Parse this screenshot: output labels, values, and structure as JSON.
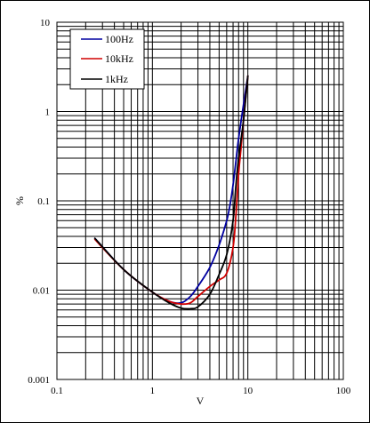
{
  "chart_data": {
    "type": "line",
    "title": "",
    "xlabel": "V",
    "ylabel": "%",
    "x_scale": "log",
    "y_scale": "log",
    "xlim": [
      0.1,
      100
    ],
    "ylim": [
      0.001,
      10
    ],
    "grid": true,
    "legend_position": "top-left",
    "x_tick_labels": [
      "0.1",
      "1",
      "10",
      "100"
    ],
    "y_tick_labels": [
      "0.001",
      "0.01",
      "0.1",
      "1",
      "10"
    ],
    "series": [
      {
        "name": "100Hz",
        "color": "#0000a0",
        "x": [
          0.25,
          0.5,
          1.0,
          1.5,
          2.0,
          2.5,
          3.0,
          4.0,
          5.0,
          6.0,
          6.5,
          7.0,
          7.5,
          8.0,
          9.0,
          10.0
        ],
        "y": [
          0.038,
          0.017,
          0.0095,
          0.0075,
          0.0072,
          0.0085,
          0.011,
          0.018,
          0.032,
          0.06,
          0.09,
          0.15,
          0.28,
          0.5,
          1.2,
          2.5
        ]
      },
      {
        "name": "10kHz",
        "color": "#d00000",
        "x": [
          0.25,
          0.5,
          1.0,
          1.5,
          2.0,
          2.5,
          3.0,
          4.0,
          5.0,
          6.0,
          7.0,
          7.5,
          8.0,
          8.5,
          9.0,
          10.0
        ],
        "y": [
          0.037,
          0.017,
          0.0095,
          0.0075,
          0.007,
          0.0072,
          0.0085,
          0.011,
          0.013,
          0.0155,
          0.03,
          0.07,
          0.2,
          0.4,
          0.8,
          2.5
        ]
      },
      {
        "name": "1kHz",
        "color": "#000000",
        "x": [
          0.25,
          0.5,
          1.0,
          1.5,
          2.0,
          2.5,
          3.0,
          4.0,
          5.0,
          6.0,
          7.0,
          7.5,
          8.0,
          9.0,
          10.0
        ],
        "y": [
          0.038,
          0.017,
          0.0095,
          0.0072,
          0.0063,
          0.0062,
          0.0065,
          0.009,
          0.015,
          0.025,
          0.06,
          0.15,
          0.3,
          0.8,
          2.5
        ]
      }
    ]
  }
}
